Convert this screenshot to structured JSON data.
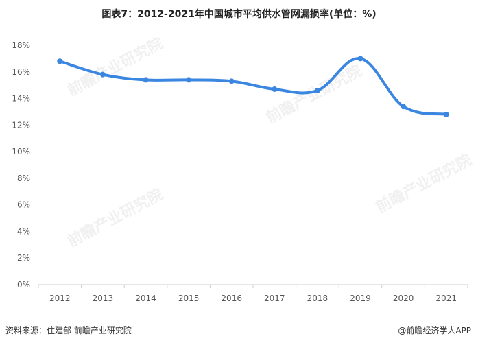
{
  "title": "图表7：2012-2021年中国城市平均供水管网漏损率(单位：%)",
  "footer": {
    "source": "资料来源：住建部 前瞻产业研究院",
    "brand": "@前瞻经济学人APP"
  },
  "watermark": "前瞻产业研究院",
  "colors": {
    "line": "#3b86e0",
    "grid": "#e6e6e6",
    "axis": "#cccccc"
  },
  "chart_data": {
    "type": "line",
    "categories": [
      "2012",
      "2013",
      "2014",
      "2015",
      "2016",
      "2017",
      "2018",
      "2019",
      "2020",
      "2021"
    ],
    "values": [
      16.8,
      15.8,
      15.4,
      15.4,
      15.3,
      14.7,
      14.6,
      17.0,
      13.4,
      12.8
    ],
    "y_ticks": [
      "0%",
      "2%",
      "4%",
      "6%",
      "8%",
      "10%",
      "12%",
      "14%",
      "16%",
      "18%"
    ],
    "ylim": [
      0,
      18
    ],
    "grid": false,
    "smooth": true
  }
}
